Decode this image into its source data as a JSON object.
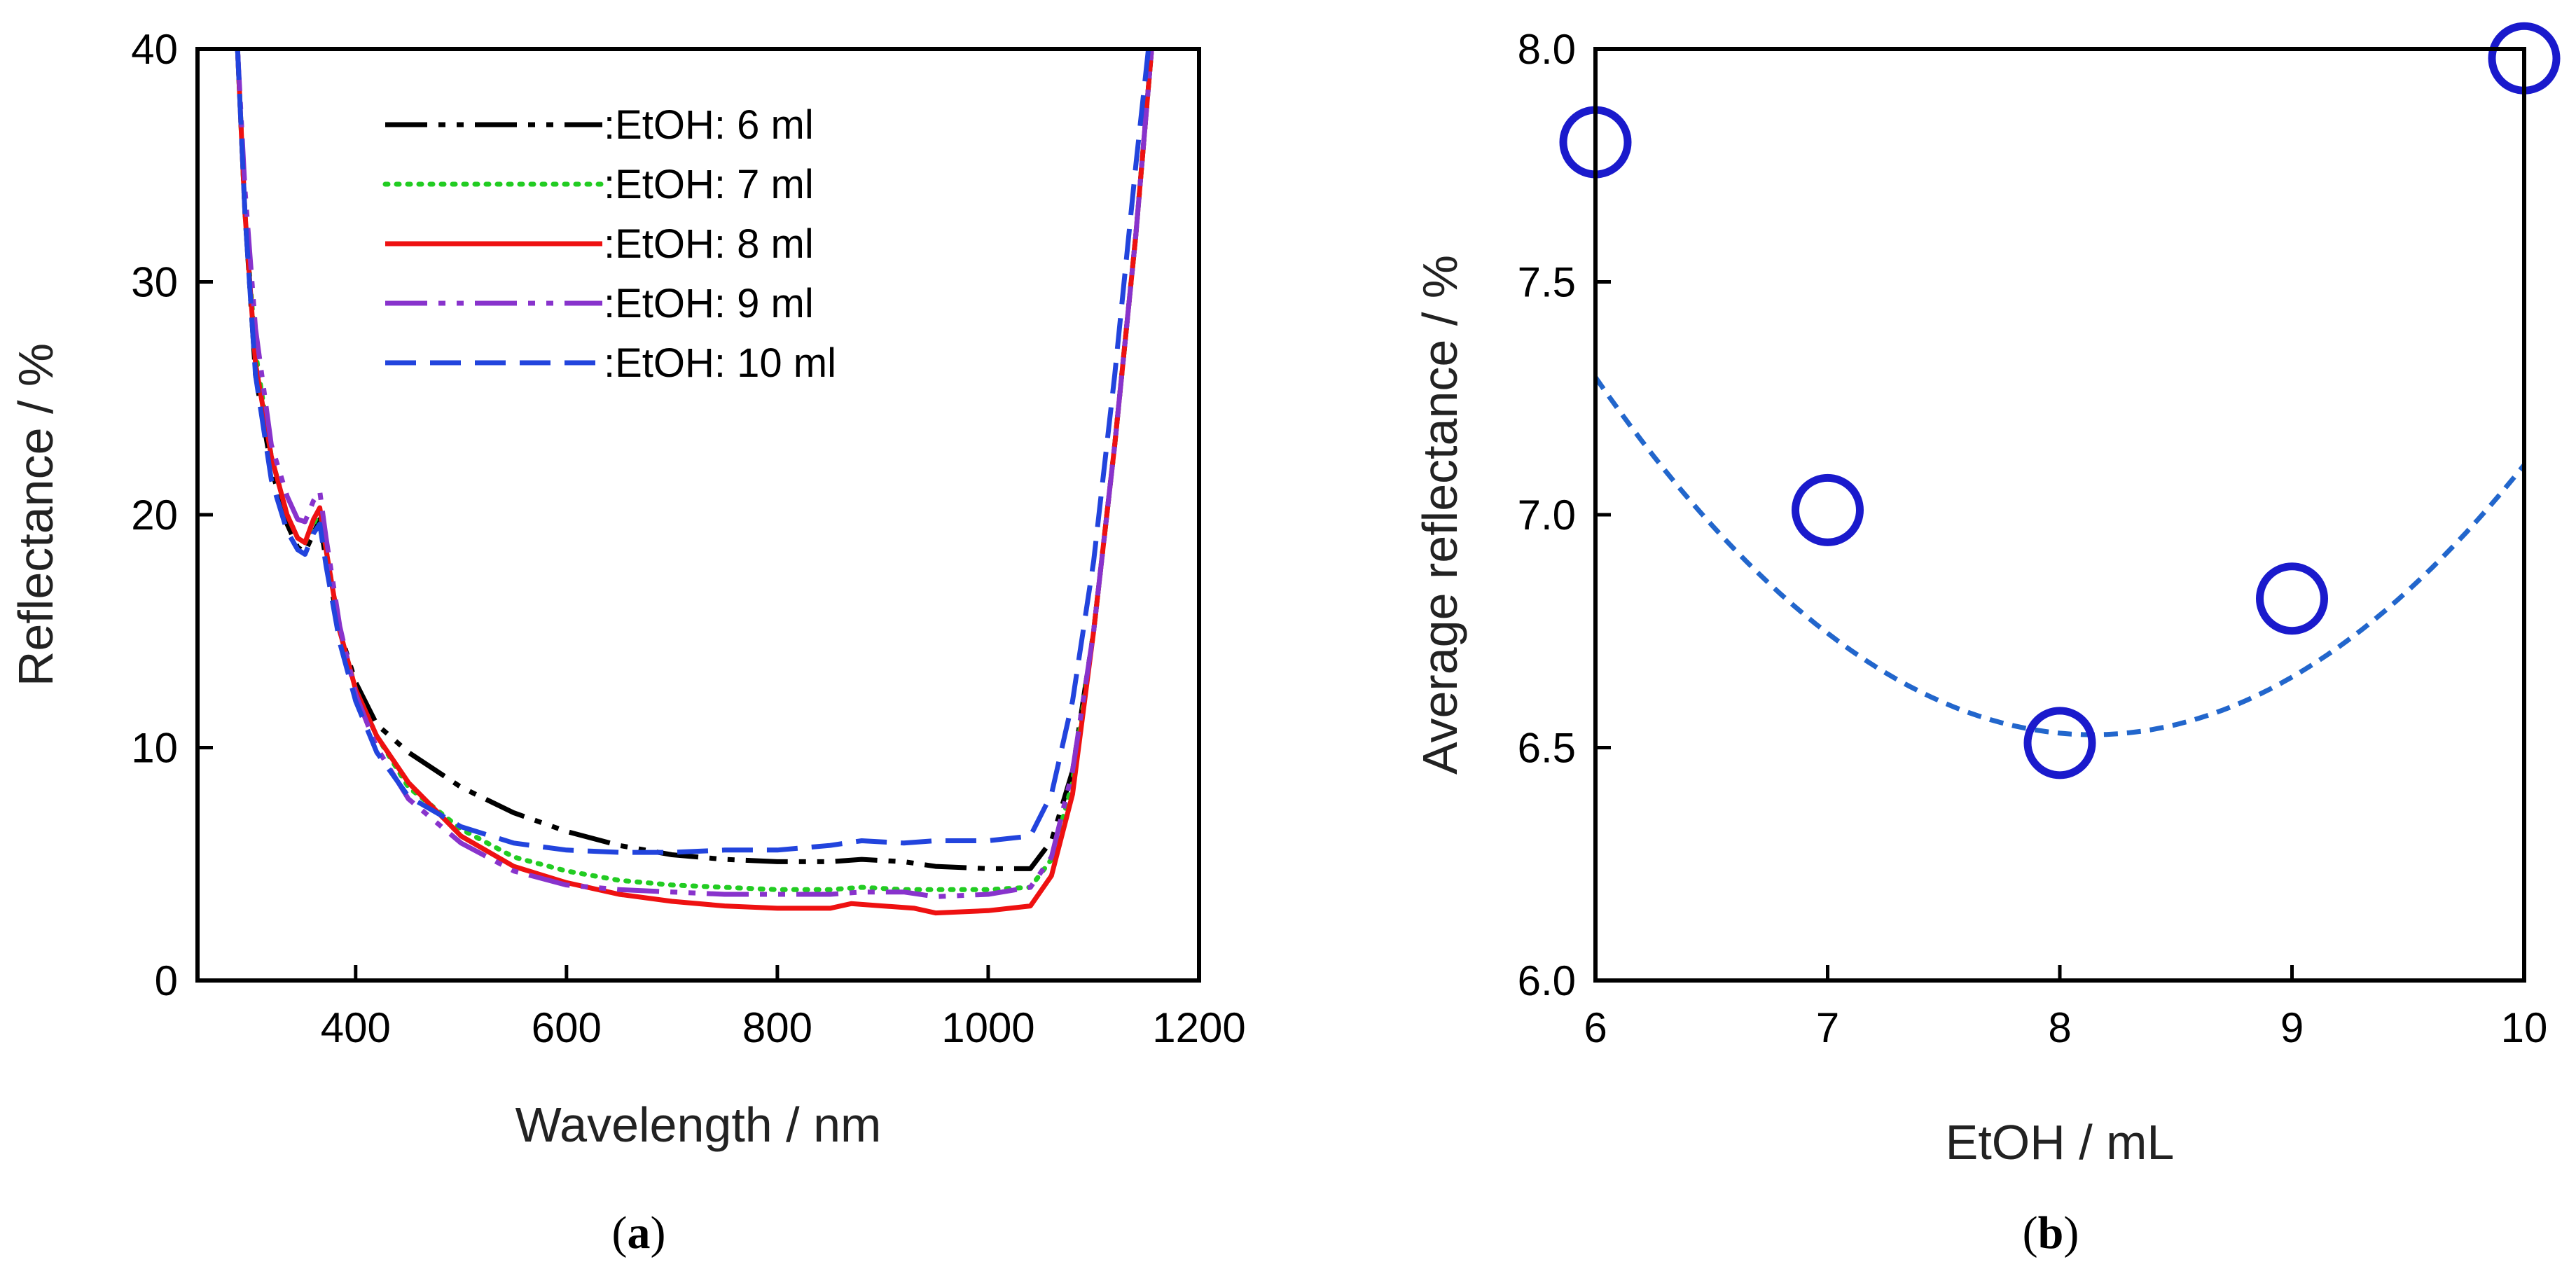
{
  "chart_data": [
    {
      "type": "line",
      "panel_label": "a",
      "xlabel": "Wavelength / nm",
      "ylabel": "Reflectance / %",
      "xlim": [
        250,
        1200
      ],
      "ylim": [
        0,
        40
      ],
      "xticks": [
        400,
        600,
        800,
        1000,
        1200
      ],
      "yticks": [
        0,
        10,
        20,
        30,
        40
      ],
      "legend_position": "top-center",
      "series": [
        {
          "name": ":EtOH: 6 ml",
          "color": "#000000",
          "style": "dash-dot-dot",
          "points": [
            [
              288,
              40
            ],
            [
              295,
              33
            ],
            [
              305,
              26
            ],
            [
              320,
              22
            ],
            [
              335,
              19.6
            ],
            [
              345,
              18.6
            ],
            [
              352,
              18.4
            ],
            [
              360,
              19.2
            ],
            [
              366,
              19.8
            ],
            [
              372,
              18
            ],
            [
              385,
              15
            ],
            [
              400,
              12.8
            ],
            [
              420,
              11
            ],
            [
              450,
              9.8
            ],
            [
              500,
              8.3
            ],
            [
              550,
              7.2
            ],
            [
              600,
              6.4
            ],
            [
              650,
              5.8
            ],
            [
              700,
              5.4
            ],
            [
              750,
              5.2
            ],
            [
              800,
              5.1
            ],
            [
              850,
              5.1
            ],
            [
              880,
              5.2
            ],
            [
              920,
              5.1
            ],
            [
              950,
              4.9
            ],
            [
              1000,
              4.8
            ],
            [
              1040,
              4.8
            ],
            [
              1060,
              6
            ],
            [
              1080,
              9
            ],
            [
              1100,
              15
            ],
            [
              1120,
              23
            ],
            [
              1140,
              32
            ],
            [
              1155,
              40
            ]
          ]
        },
        {
          "name": ":EtOH: 7 ml",
          "color": "#22cc22",
          "style": "dotted",
          "points": [
            [
              288,
              40
            ],
            [
              295,
              33
            ],
            [
              305,
              27
            ],
            [
              320,
              22.5
            ],
            [
              335,
              20
            ],
            [
              345,
              19
            ],
            [
              352,
              18.8
            ],
            [
              360,
              19.6
            ],
            [
              366,
              20.2
            ],
            [
              372,
              18.5
            ],
            [
              385,
              15
            ],
            [
              400,
              12.5
            ],
            [
              420,
              10.5
            ],
            [
              450,
              8.3
            ],
            [
              500,
              6.5
            ],
            [
              550,
              5.3
            ],
            [
              600,
              4.7
            ],
            [
              650,
              4.3
            ],
            [
              700,
              4.1
            ],
            [
              750,
              4
            ],
            [
              800,
              3.9
            ],
            [
              850,
              3.9
            ],
            [
              880,
              4
            ],
            [
              920,
              3.9
            ],
            [
              950,
              3.9
            ],
            [
              1000,
              3.9
            ],
            [
              1040,
              4
            ],
            [
              1060,
              5.2
            ],
            [
              1080,
              8.5
            ],
            [
              1100,
              15
            ],
            [
              1120,
              23
            ],
            [
              1140,
              32
            ],
            [
              1155,
              40
            ]
          ]
        },
        {
          "name": ":EtOH: 8 ml",
          "color": "#ee1111",
          "style": "solid",
          "points": [
            [
              288,
              40
            ],
            [
              295,
              33
            ],
            [
              305,
              26.5
            ],
            [
              320,
              22.5
            ],
            [
              335,
              20
            ],
            [
              345,
              19
            ],
            [
              352,
              18.8
            ],
            [
              360,
              19.8
            ],
            [
              366,
              20.3
            ],
            [
              372,
              18.5
            ],
            [
              385,
              15
            ],
            [
              400,
              12.5
            ],
            [
              420,
              10.5
            ],
            [
              450,
              8.5
            ],
            [
              500,
              6.2
            ],
            [
              550,
              4.9
            ],
            [
              600,
              4.2
            ],
            [
              650,
              3.7
            ],
            [
              700,
              3.4
            ],
            [
              750,
              3.2
            ],
            [
              800,
              3.1
            ],
            [
              850,
              3.1
            ],
            [
              870,
              3.3
            ],
            [
              900,
              3.2
            ],
            [
              930,
              3.1
            ],
            [
              950,
              2.9
            ],
            [
              1000,
              3
            ],
            [
              1040,
              3.2
            ],
            [
              1060,
              4.5
            ],
            [
              1080,
              8
            ],
            [
              1100,
              15
            ],
            [
              1120,
              23
            ],
            [
              1140,
              32
            ],
            [
              1155,
              40
            ]
          ]
        },
        {
          "name": ":EtOH: 9 ml",
          "color": "#8833cc",
          "style": "dash-dot-dot",
          "points": [
            [
              288,
              40
            ],
            [
              295,
              34
            ],
            [
              305,
              28
            ],
            [
              320,
              23
            ],
            [
              335,
              20.8
            ],
            [
              345,
              19.8
            ],
            [
              352,
              19.7
            ],
            [
              360,
              20.6
            ],
            [
              366,
              21
            ],
            [
              372,
              19
            ],
            [
              385,
              15.2
            ],
            [
              400,
              12.3
            ],
            [
              420,
              10
            ],
            [
              450,
              7.8
            ],
            [
              500,
              5.9
            ],
            [
              550,
              4.7
            ],
            [
              600,
              4.1
            ],
            [
              650,
              3.9
            ],
            [
              700,
              3.8
            ],
            [
              750,
              3.7
            ],
            [
              800,
              3.7
            ],
            [
              850,
              3.7
            ],
            [
              880,
              3.8
            ],
            [
              920,
              3.8
            ],
            [
              950,
              3.6
            ],
            [
              1000,
              3.7
            ],
            [
              1040,
              4
            ],
            [
              1060,
              5.3
            ],
            [
              1080,
              9
            ],
            [
              1100,
              15
            ],
            [
              1120,
              23
            ],
            [
              1140,
              32
            ],
            [
              1155,
              40
            ]
          ]
        },
        {
          "name": ":EtOH: 10 ml",
          "color": "#2244dd",
          "style": "dashed",
          "points": [
            [
              288,
              40
            ],
            [
              295,
              33
            ],
            [
              305,
              26
            ],
            [
              320,
              21.5
            ],
            [
              335,
              19.3
            ],
            [
              345,
              18.5
            ],
            [
              352,
              18.3
            ],
            [
              360,
              19.2
            ],
            [
              366,
              19.6
            ],
            [
              372,
              17.8
            ],
            [
              385,
              14.5
            ],
            [
              400,
              12
            ],
            [
              420,
              9.8
            ],
            [
              450,
              7.9
            ],
            [
              500,
              6.6
            ],
            [
              550,
              5.9
            ],
            [
              600,
              5.6
            ],
            [
              650,
              5.5
            ],
            [
              700,
              5.5
            ],
            [
              750,
              5.6
            ],
            [
              800,
              5.6
            ],
            [
              850,
              5.8
            ],
            [
              880,
              6
            ],
            [
              920,
              5.9
            ],
            [
              950,
              6
            ],
            [
              1000,
              6
            ],
            [
              1040,
              6.2
            ],
            [
              1060,
              8
            ],
            [
              1080,
              12
            ],
            [
              1100,
              18
            ],
            [
              1120,
              26
            ],
            [
              1140,
              35
            ],
            [
              1152,
              40
            ]
          ]
        }
      ]
    },
    {
      "type": "scatter",
      "panel_label": "b",
      "xlabel": "EtOH / mL",
      "ylabel": "Average reflectance / %",
      "xlim": [
        6,
        10
      ],
      "ylim": [
        6.0,
        8.0
      ],
      "xticks": [
        6,
        7,
        8,
        9,
        10
      ],
      "yticks": [
        6.0,
        6.5,
        7.0,
        7.5,
        8.0
      ],
      "yticklabels": [
        "6.0",
        "6.5",
        "7.0",
        "7.5",
        "8.0"
      ],
      "marker_color": "#1a1acc",
      "fit_color": "#2266cc",
      "x": [
        6,
        7,
        8,
        9,
        10
      ],
      "y": [
        7.8,
        7.01,
        6.51,
        6.82,
        7.98
      ],
      "fit": {
        "type": "quadratic",
        "coef": [
          0.1675,
          -2.727,
          17.627
        ]
      }
    }
  ]
}
